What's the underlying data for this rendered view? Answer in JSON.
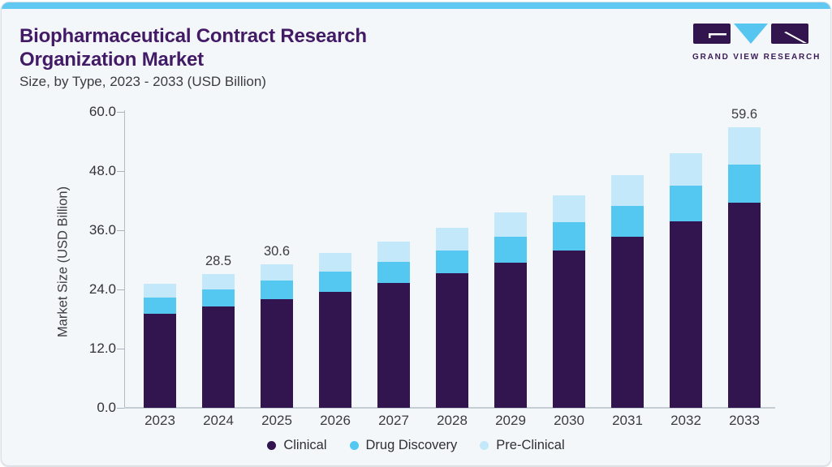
{
  "header": {
    "title_line1": "Biopharmaceutical Contract Research",
    "title_line2": "Organization Market",
    "subtitle": "Size, by Type, 2023 - 2033 (USD Billion)"
  },
  "logo": {
    "name": "Grand View Research",
    "text": "GRAND VIEW RESEARCH"
  },
  "colors": {
    "accent_bar": "#60c8f1",
    "card_background": "#f3f7fa",
    "border": "#d9e0e8",
    "title": "#421a66",
    "text": "#3b3b43",
    "axis_line": "#b3bbc5",
    "clinical": "#32154e",
    "drug_discovery": "#55c8f2",
    "pre_clinical": "#c3e8f9"
  },
  "chart_data": {
    "type": "bar",
    "stacked": true,
    "title": "Biopharmaceutical Contract Research Organization Market Size, by Type, 2023 - 2033 (USD Billion)",
    "xlabel": "",
    "ylabel": "Market Size (USD Billion)",
    "ylim": [
      0,
      60
    ],
    "yticks": [
      0,
      12,
      24,
      36,
      48,
      60
    ],
    "ytick_labels": [
      "0.0",
      "12.0",
      "24.0",
      "36.0",
      "48.0",
      "60.0"
    ],
    "grid": false,
    "legend_position": "bottom",
    "categories": [
      "2023",
      "2024",
      "2025",
      "2026",
      "2027",
      "2028",
      "2029",
      "2030",
      "2031",
      "2032",
      "2033"
    ],
    "series": [
      {
        "name": "Clinical",
        "color": "#32154e",
        "values": [
          20.0,
          21.5,
          23.1,
          24.7,
          26.5,
          28.6,
          30.9,
          33.4,
          36.3,
          39.7,
          43.7
        ]
      },
      {
        "name": "Drug Discovery",
        "color": "#55c8f2",
        "values": [
          3.4,
          3.7,
          3.9,
          4.3,
          4.5,
          4.9,
          5.4,
          6.1,
          6.7,
          7.5,
          8.0
        ]
      },
      {
        "name": "Pre-Clinical",
        "color": "#c3e8f9",
        "values": [
          3.0,
          3.3,
          3.6,
          3.9,
          4.4,
          4.8,
          5.2,
          5.7,
          6.4,
          7.0,
          7.9
        ]
      }
    ],
    "totals": [
      26.4,
      28.5,
      30.6,
      32.9,
      35.4,
      38.3,
      41.5,
      45.2,
      49.4,
      54.2,
      59.6
    ],
    "bar_labels": [
      "",
      "28.5",
      "30.6",
      "",
      "",
      "",
      "",
      "",
      "",
      "",
      "59.6"
    ]
  },
  "legend": {
    "items": [
      {
        "label": "Clinical",
        "color": "#32154e"
      },
      {
        "label": "Drug Discovery",
        "color": "#55c8f2"
      },
      {
        "label": "Pre-Clinical",
        "color": "#c3e8f9"
      }
    ]
  }
}
